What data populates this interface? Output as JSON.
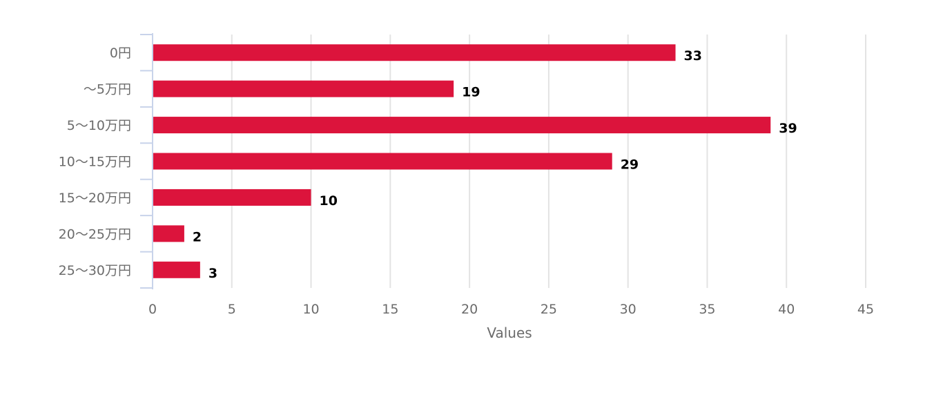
{
  "chart_data": {
    "type": "bar",
    "orientation": "horizontal",
    "categories": [
      "0円",
      "〜5万円",
      "5〜10万円",
      "10〜15万円",
      "15〜20万円",
      "20〜25万円",
      "25〜30万円"
    ],
    "values": [
      33,
      19,
      39,
      29,
      10,
      2,
      3
    ],
    "data_labels": [
      "33",
      "19",
      "39",
      "29",
      "10",
      "2",
      "3"
    ],
    "x_ticks": [
      "0",
      "5",
      "10",
      "15",
      "20",
      "25",
      "30",
      "35",
      "40",
      "45"
    ],
    "xlabel": "Values",
    "xlim": [
      0,
      45
    ],
    "grid": "vertical",
    "legend": "none",
    "bar_color": "#dc143c"
  }
}
